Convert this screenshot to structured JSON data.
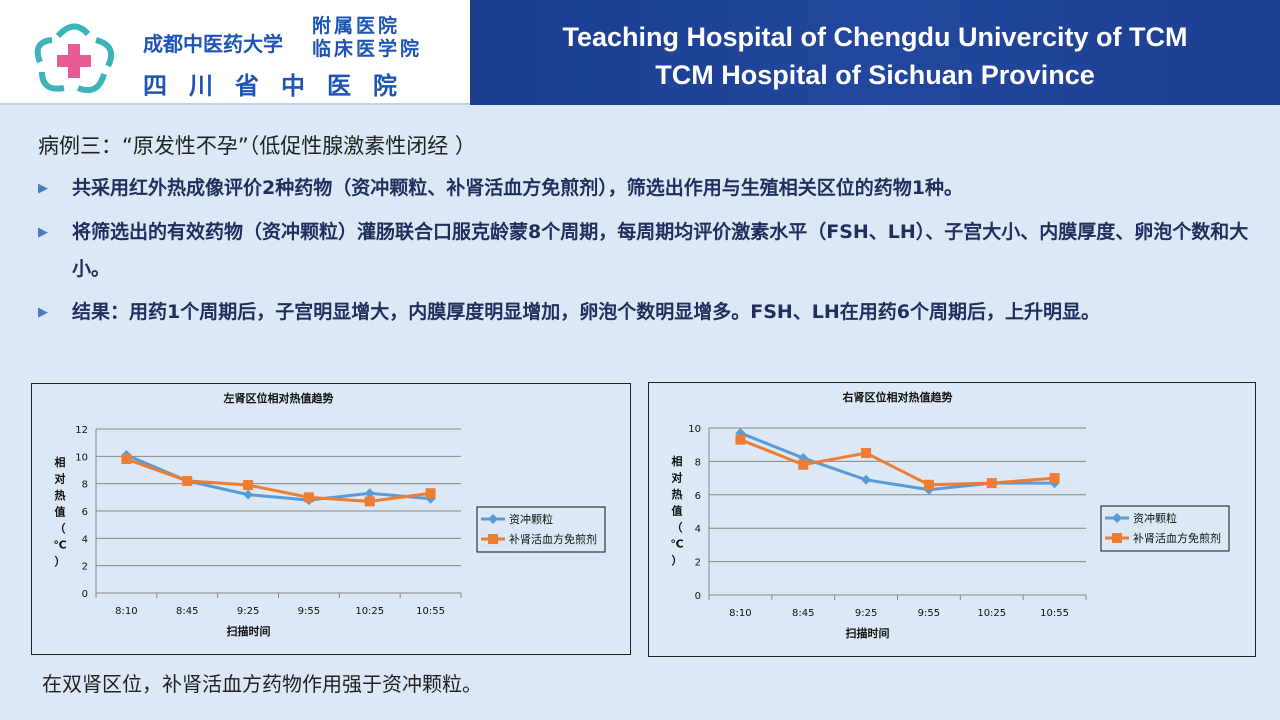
{
  "header": {
    "logo_line1": "成都中医药大学",
    "logo_line2a": "附属医院",
    "logo_line2b": "临床医学院",
    "logo_line3": "四川省中医院",
    "title_en_1": "Teaching Hospital of Chengdu Univercity of TCM",
    "title_en_2": "TCM Hospital of Sichuan Province"
  },
  "case_title": "病例三：“原发性不孕”（低促性腺激素性闭经 ）",
  "bullets": [
    "共采用红外热成像评价2种药物（资冲颗粒、补肾活血方免煎剂），筛选出作用与生殖相关区位的药物1种。",
    "将筛选出的有效药物（资冲颗粒）灌肠联合口服克龄蒙8个周期，每周期均评价激素水平（FSH、LH）、子宫大小、内膜厚度、卵泡个数和大小。",
    "结果：用药1个周期后，子宫明显增大，内膜厚度明显增加，卵泡个数明显增多。FSH、LH在用药6个周期后，上升明显。"
  ],
  "colors": {
    "series1": "#5b9bd5",
    "series2": "#ed7d31",
    "header_blue": "#1f4496"
  },
  "chart_data": [
    {
      "type": "line",
      "title": "左肾区位相对热值趋势",
      "xlabel": "扫描时间",
      "ylabel": "相对热值（℃）",
      "categories": [
        "8:10",
        "8:45",
        "9:25",
        "9:55",
        "10:25",
        "10:55"
      ],
      "ylim": [
        0,
        12
      ],
      "yticks": [
        0,
        2,
        4,
        6,
        8,
        10,
        12
      ],
      "grid": true,
      "legend": "right",
      "series": [
        {
          "name": "资冲颗粒",
          "marker": "diamond",
          "values": [
            10.1,
            8.2,
            7.2,
            6.8,
            7.3,
            6.9
          ]
        },
        {
          "name": "补肾活血方免煎剂",
          "marker": "square",
          "values": [
            9.8,
            8.2,
            7.9,
            7.0,
            6.7,
            7.3
          ]
        }
      ]
    },
    {
      "type": "line",
      "title": "右肾区位相对热值趋势",
      "xlabel": "扫描时间",
      "ylabel": "相对热值（℃）",
      "categories": [
        "8:10",
        "8:45",
        "9:25",
        "9:55",
        "10:25",
        "10:55"
      ],
      "ylim": [
        0,
        10
      ],
      "yticks": [
        0,
        2,
        4,
        6,
        8,
        10
      ],
      "grid": true,
      "legend": "right",
      "series": [
        {
          "name": "资冲颗粒",
          "marker": "diamond",
          "values": [
            9.7,
            8.2,
            6.9,
            6.3,
            6.7,
            6.7
          ]
        },
        {
          "name": "补肾活血方免煎剂",
          "marker": "square",
          "values": [
            9.3,
            7.8,
            8.5,
            6.6,
            6.7,
            7.0
          ]
        }
      ]
    }
  ],
  "conclusion": "在双肾区位，补肾活血方药物作用强于资冲颗粒。"
}
